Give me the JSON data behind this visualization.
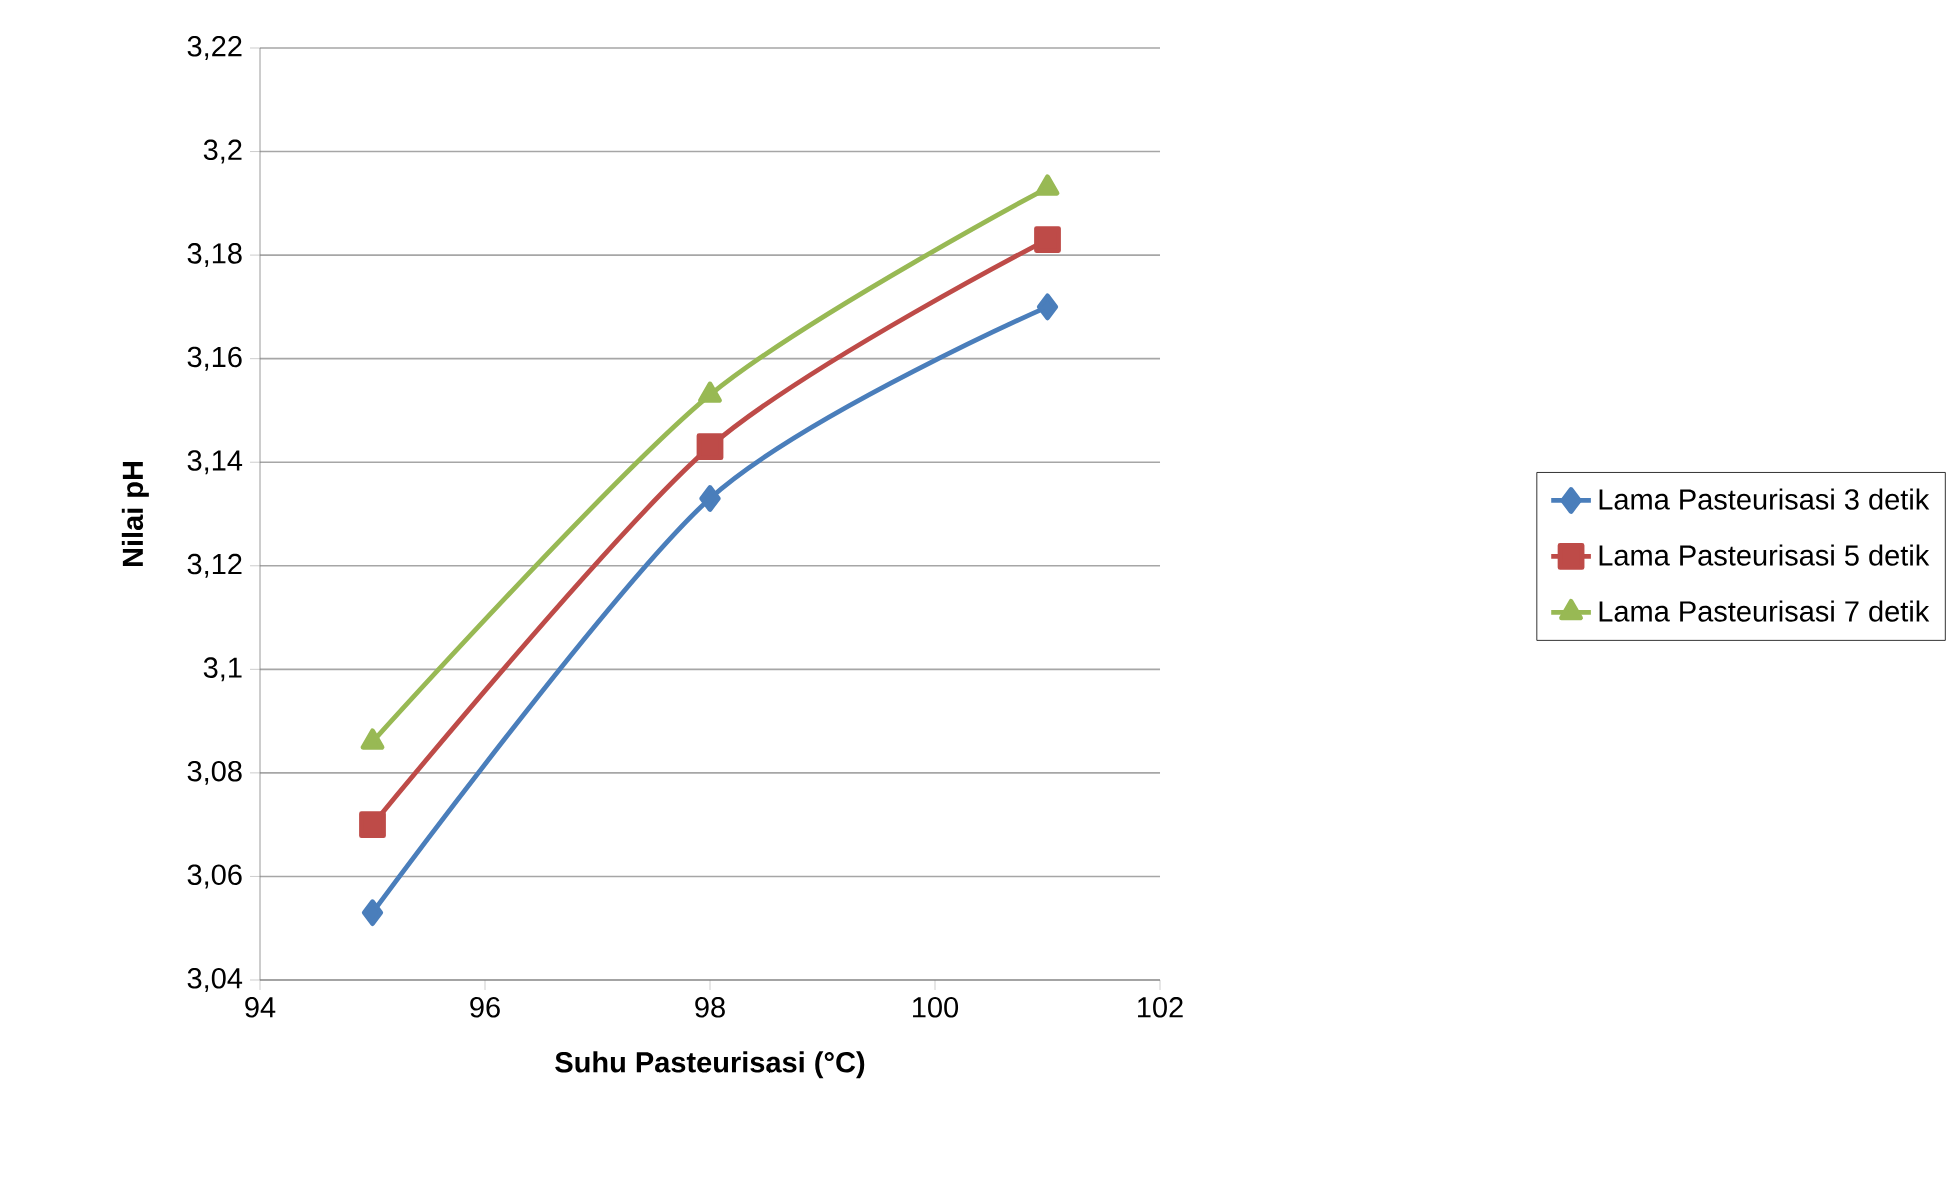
{
  "chart_data": {
    "type": "line",
    "xlabel": "Suhu Pasteurisasi (°C)",
    "ylabel": "Nilai pH",
    "x": [
      95,
      98,
      101
    ],
    "series": [
      {
        "name": "Lama Pasteurisasi 3 detik",
        "color": "#4a7ebb",
        "marker": "diamond",
        "values": [
          3.053,
          3.133,
          3.17
        ]
      },
      {
        "name": "Lama Pasteurisasi 5 detik",
        "color": "#be4b48",
        "marker": "square",
        "values": [
          3.07,
          3.143,
          3.183
        ]
      },
      {
        "name": "Lama Pasteurisasi 7 detik",
        "color": "#98b954",
        "marker": "triangle",
        "values": [
          3.086,
          3.153,
          3.193
        ]
      }
    ],
    "xlim": [
      94,
      102
    ],
    "xticks": [
      94,
      96,
      98,
      100,
      102
    ],
    "ylim": [
      3.04,
      3.22
    ],
    "yticks": [
      {
        "value": 3.04,
        "label": "3,04"
      },
      {
        "value": 3.06,
        "label": "3,06"
      },
      {
        "value": 3.08,
        "label": "3,08"
      },
      {
        "value": 3.1,
        "label": "3,1"
      },
      {
        "value": 3.12,
        "label": "3,12"
      },
      {
        "value": 3.14,
        "label": "3,14"
      },
      {
        "value": 3.16,
        "label": "3,16"
      },
      {
        "value": 3.18,
        "label": "3,18"
      },
      {
        "value": 3.2,
        "label": "3,2"
      },
      {
        "value": 3.22,
        "label": "3,22"
      }
    ],
    "grid": "y",
    "legend": "right"
  }
}
